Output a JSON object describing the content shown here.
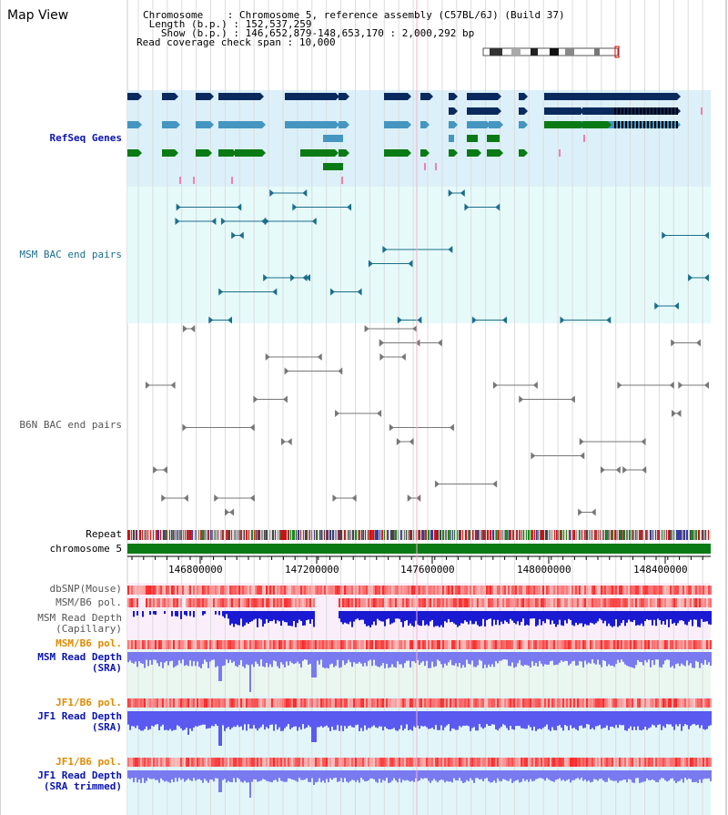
{
  "page": {
    "title": "Map View"
  },
  "info": {
    "chromosome_label": "Chromosome",
    "chromosome_value": "Chromosome 5, reference assembly (C57BL/6J) (Build 37)",
    "length_label": "Length (b.p.)",
    "length_value": "152,537,259",
    "show_label": "Show (b.p.)",
    "show_value": "146,652,879-148,653,170 : 2,000,292 bp",
    "span_label": "Read coverage check span",
    "span_value": "10,000"
  },
  "tracks": {
    "refseq": "RefSeq Genes",
    "msm_bac": "MSM BAC end pairs",
    "b6n_bac": "B6N BAC end pairs",
    "repeat": "Repeat",
    "chromosome": "chromosome 5",
    "dbsnp": "dbSNP(Mouse)",
    "msm_b6_pol": "MSM/B6 pol.",
    "msm_depth_cap_1": "MSM Read Depth",
    "msm_depth_cap_2": "(Capillary)",
    "msm_b6_pol_2": "MSM/B6 pol.",
    "msm_depth_sra_1": "MSM Read Depth",
    "msm_depth_sra_2": "(SRA)",
    "jf1_b6_pol": "JF1/B6 pol.",
    "jf1_depth_sra_1": "JF1 Read Depth",
    "jf1_depth_sra_2": "(SRA)",
    "jf1_b6_pol_2": "JF1/B6 pol.",
    "jf1_depth_trim_1": "JF1 Read Depth",
    "jf1_depth_trim_2": "(SRA trimmed)"
  },
  "axis": {
    "ticks": [
      "146800000",
      "147200000",
      "147600000",
      "148000000",
      "148400000"
    ]
  },
  "colors": {
    "refseq_bg": "#dcf0fa",
    "bac_bg": "#e6fafa",
    "gene_dark": "#0a2a5e",
    "gene_mid": "#4496c0",
    "gene_green": "#0a7a14",
    "chromosome_bar": "#0a7a14",
    "depth_capillary": "#1a1ad2",
    "depth_sra": "#7a7af0"
  }
}
